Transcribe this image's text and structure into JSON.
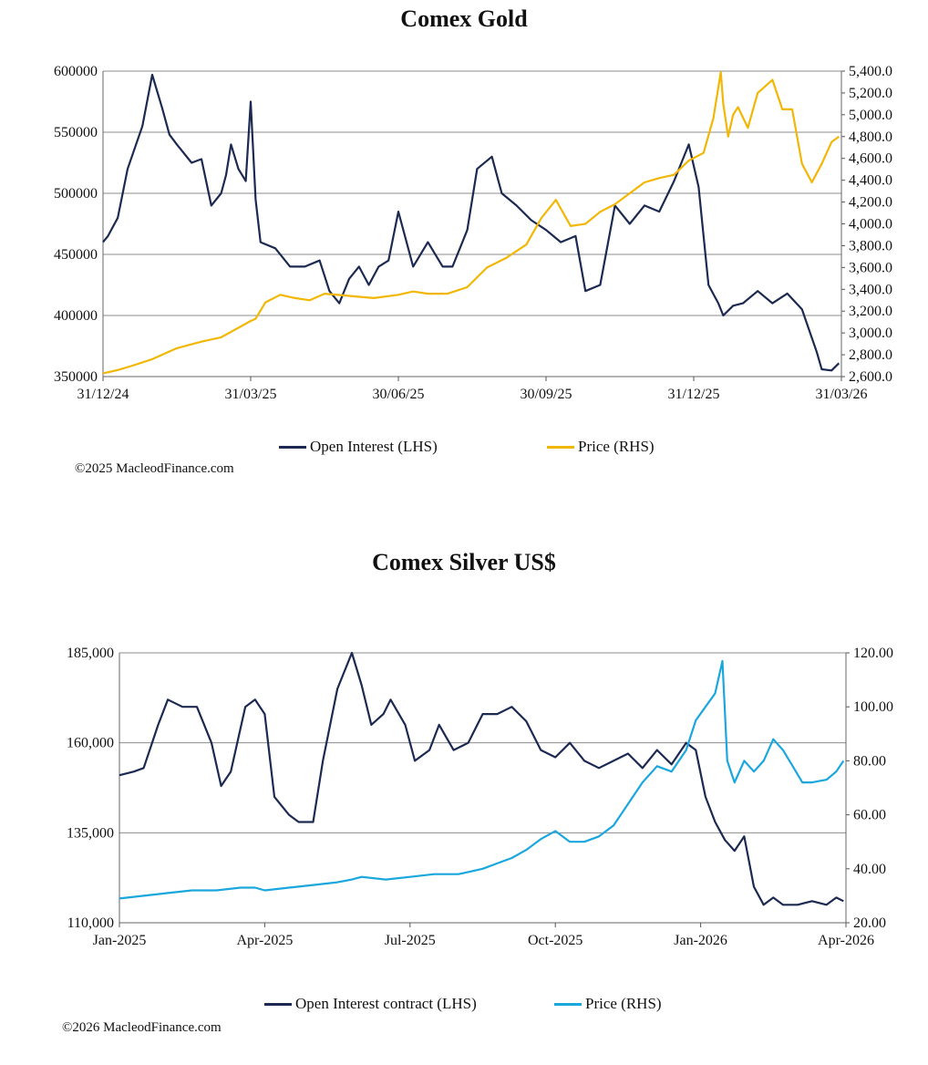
{
  "colors": {
    "open_interest": "#1c2a52",
    "gold_price": "#f2b705",
    "silver_price": "#1aa7de",
    "grid": "#8c8c8c"
  },
  "chart_data": [
    {
      "type": "line",
      "title": "Comex Gold",
      "copyright": "©2025 MacleodFinance.com",
      "legend": "bottom",
      "grid": true,
      "x_tick_labels": [
        "31/12/24",
        "31/03/25",
        "30/06/25",
        "30/09/25",
        "31/12/25",
        "31/03/26"
      ],
      "left_axis": {
        "label": "",
        "ylim": [
          350000,
          600000
        ],
        "ticks": [
          350000,
          400000,
          450000,
          500000,
          550000,
          600000
        ],
        "tick_labels": [
          "350000",
          "400000",
          "450000",
          "500000",
          "550000",
          "600000"
        ]
      },
      "right_axis": {
        "label": "",
        "ylim": [
          2600,
          5400
        ],
        "ticks": [
          2600,
          2800,
          3000,
          3200,
          3400,
          3600,
          3800,
          4000,
          4200,
          4400,
          4600,
          4800,
          5000,
          5200,
          5400
        ],
        "tick_labels": [
          "2,600.0",
          "2,800.0",
          "3,000.0",
          "3,200.0",
          "3,400.0",
          "3,600.0",
          "3,800.0",
          "4,000.0",
          "4,200.0",
          "4,400.0",
          "4,600.0",
          "4,800.0",
          "5,000.0",
          "5,200.0",
          "5,400.0"
        ]
      },
      "x_range_months": [
        0,
        15
      ],
      "series": [
        {
          "name": "Open Interest (LHS)",
          "axis": "left",
          "color_key": "open_interest",
          "x": [
            0,
            0.1,
            0.3,
            0.5,
            0.8,
            1.0,
            1.2,
            1.35,
            1.5,
            1.8,
            2.0,
            2.2,
            2.4,
            2.5,
            2.6,
            2.75,
            2.9,
            3.0,
            3.1,
            3.2,
            3.5,
            3.8,
            4.1,
            4.4,
            4.6,
            4.8,
            5.0,
            5.2,
            5.4,
            5.6,
            5.8,
            6.0,
            6.3,
            6.6,
            6.9,
            7.1,
            7.4,
            7.6,
            7.9,
            8.1,
            8.4,
            8.7,
            9.0,
            9.3,
            9.6,
            9.8,
            10.1,
            10.4,
            10.7,
            11.0,
            11.3,
            11.6,
            11.9,
            12.1,
            12.3,
            12.5,
            12.6,
            12.8,
            13.0,
            13.3,
            13.6,
            13.9,
            14.2,
            14.5,
            14.6,
            14.8,
            14.95
          ],
          "values": [
            460000,
            465000,
            480000,
            520000,
            555000,
            597000,
            570000,
            548000,
            540000,
            525000,
            528000,
            490000,
            500000,
            515000,
            540000,
            520000,
            510000,
            575000,
            495000,
            460000,
            455000,
            440000,
            440000,
            445000,
            420000,
            410000,
            430000,
            440000,
            425000,
            440000,
            445000,
            485000,
            440000,
            460000,
            440000,
            440000,
            470000,
            520000,
            530000,
            500000,
            490000,
            478000,
            470000,
            460000,
            465000,
            420000,
            425000,
            490000,
            475000,
            490000,
            485000,
            510000,
            540000,
            505000,
            425000,
            410000,
            400000,
            408000,
            410000,
            420000,
            410000,
            418000,
            405000,
            370000,
            356000,
            355000,
            361000
          ]
        },
        {
          "name": "Price (RHS)",
          "axis": "right",
          "color_key": "gold_price",
          "x": [
            0,
            0.3,
            0.6,
            1.0,
            1.5,
            2.0,
            2.4,
            2.8,
            3.0,
            3.1,
            3.3,
            3.6,
            3.9,
            4.2,
            4.5,
            5.0,
            5.5,
            6.0,
            6.3,
            6.6,
            7.0,
            7.4,
            7.8,
            8.2,
            8.6,
            8.9,
            9.2,
            9.5,
            9.8,
            10.1,
            10.4,
            10.7,
            11.0,
            11.3,
            11.6,
            11.9,
            12.2,
            12.4,
            12.55,
            12.6,
            12.7,
            12.8,
            12.9,
            13.1,
            13.3,
            13.6,
            13.8,
            14.0,
            14.2,
            14.4,
            14.6,
            14.8,
            14.95
          ],
          "values": [
            2630,
            2660,
            2700,
            2760,
            2860,
            2920,
            2960,
            3060,
            3110,
            3130,
            3280,
            3350,
            3320,
            3300,
            3360,
            3340,
            3320,
            3350,
            3380,
            3360,
            3360,
            3420,
            3600,
            3690,
            3810,
            4050,
            4220,
            3980,
            4000,
            4110,
            4180,
            4280,
            4380,
            4420,
            4450,
            4580,
            4650,
            4970,
            5390,
            5100,
            4800,
            5000,
            5070,
            4880,
            5200,
            5320,
            5050,
            5050,
            4550,
            4380,
            4550,
            4750,
            4800
          ]
        }
      ]
    },
    {
      "type": "line",
      "title": "Comex Silver US$",
      "copyright": "©2026 MacleodFinance.com",
      "legend": "bottom",
      "grid": true,
      "x_tick_labels": [
        "Jan-2025",
        "Apr-2025",
        "Jul-2025",
        "Oct-2025",
        "Jan-2026",
        "Apr-2026"
      ],
      "left_axis": {
        "label": "",
        "ylim": [
          110000,
          185000
        ],
        "ticks": [
          110000,
          135000,
          160000,
          185000
        ],
        "tick_labels": [
          "110,000",
          "135,000",
          "160,000",
          "185,000"
        ]
      },
      "right_axis": {
        "label": "",
        "ylim": [
          20,
          120
        ],
        "ticks": [
          20,
          40,
          60,
          80,
          100,
          120
        ],
        "tick_labels": [
          "20.00",
          "40.00",
          "60.00",
          "80.00",
          "100.00",
          "120.00"
        ]
      },
      "x_range_months": [
        0,
        15
      ],
      "series": [
        {
          "name": "Open Interest contract (LHS)",
          "axis": "left",
          "color_key": "open_interest",
          "x": [
            0,
            0.3,
            0.5,
            0.8,
            1.0,
            1.3,
            1.6,
            1.9,
            2.1,
            2.3,
            2.6,
            2.8,
            3.0,
            3.2,
            3.5,
            3.7,
            4.0,
            4.2,
            4.5,
            4.8,
            5.0,
            5.2,
            5.45,
            5.6,
            5.9,
            6.1,
            6.4,
            6.6,
            6.9,
            7.2,
            7.5,
            7.8,
            8.1,
            8.4,
            8.7,
            9.0,
            9.3,
            9.6,
            9.9,
            10.2,
            10.5,
            10.8,
            11.1,
            11.4,
            11.7,
            11.9,
            12.1,
            12.3,
            12.5,
            12.7,
            12.9,
            13.1,
            13.3,
            13.5,
            13.7,
            14.0,
            14.3,
            14.6,
            14.8,
            14.95
          ],
          "values": [
            151000,
            152000,
            153000,
            165000,
            172000,
            170000,
            170000,
            160000,
            148000,
            152000,
            170000,
            172000,
            168000,
            145000,
            140000,
            138000,
            138000,
            155000,
            175000,
            185000,
            176000,
            165000,
            168000,
            172000,
            165000,
            155000,
            158000,
            165000,
            158000,
            160000,
            168000,
            168000,
            170000,
            166000,
            158000,
            156000,
            160000,
            155000,
            153000,
            155000,
            157000,
            153000,
            158000,
            154000,
            160000,
            158000,
            145000,
            138000,
            133000,
            130000,
            134000,
            120000,
            115000,
            117000,
            115000,
            115000,
            116000,
            115000,
            117000,
            116000
          ]
        },
        {
          "name": "Price (RHS)",
          "axis": "right",
          "color_key": "silver_price",
          "x": [
            0,
            0.5,
            1.0,
            1.5,
            2.0,
            2.5,
            2.8,
            3.0,
            3.5,
            4.0,
            4.5,
            4.8,
            5.0,
            5.5,
            6.0,
            6.5,
            7.0,
            7.5,
            7.8,
            8.1,
            8.4,
            8.7,
            9.0,
            9.3,
            9.6,
            9.9,
            10.2,
            10.5,
            10.8,
            11.1,
            11.4,
            11.7,
            11.9,
            12.1,
            12.3,
            12.45,
            12.55,
            12.7,
            12.9,
            13.1,
            13.3,
            13.5,
            13.7,
            13.9,
            14.1,
            14.3,
            14.6,
            14.8,
            14.95
          ],
          "values": [
            29,
            30,
            31,
            32,
            32,
            33,
            33,
            32,
            33,
            34,
            35,
            36,
            37,
            36,
            37,
            38,
            38,
            40,
            42,
            44,
            47,
            51,
            54,
            50,
            50,
            52,
            56,
            64,
            72,
            78,
            76,
            84,
            95,
            100,
            105,
            117,
            80,
            72,
            80,
            76,
            80,
            88,
            84,
            78,
            72,
            72,
            73,
            76,
            80
          ]
        }
      ]
    }
  ]
}
